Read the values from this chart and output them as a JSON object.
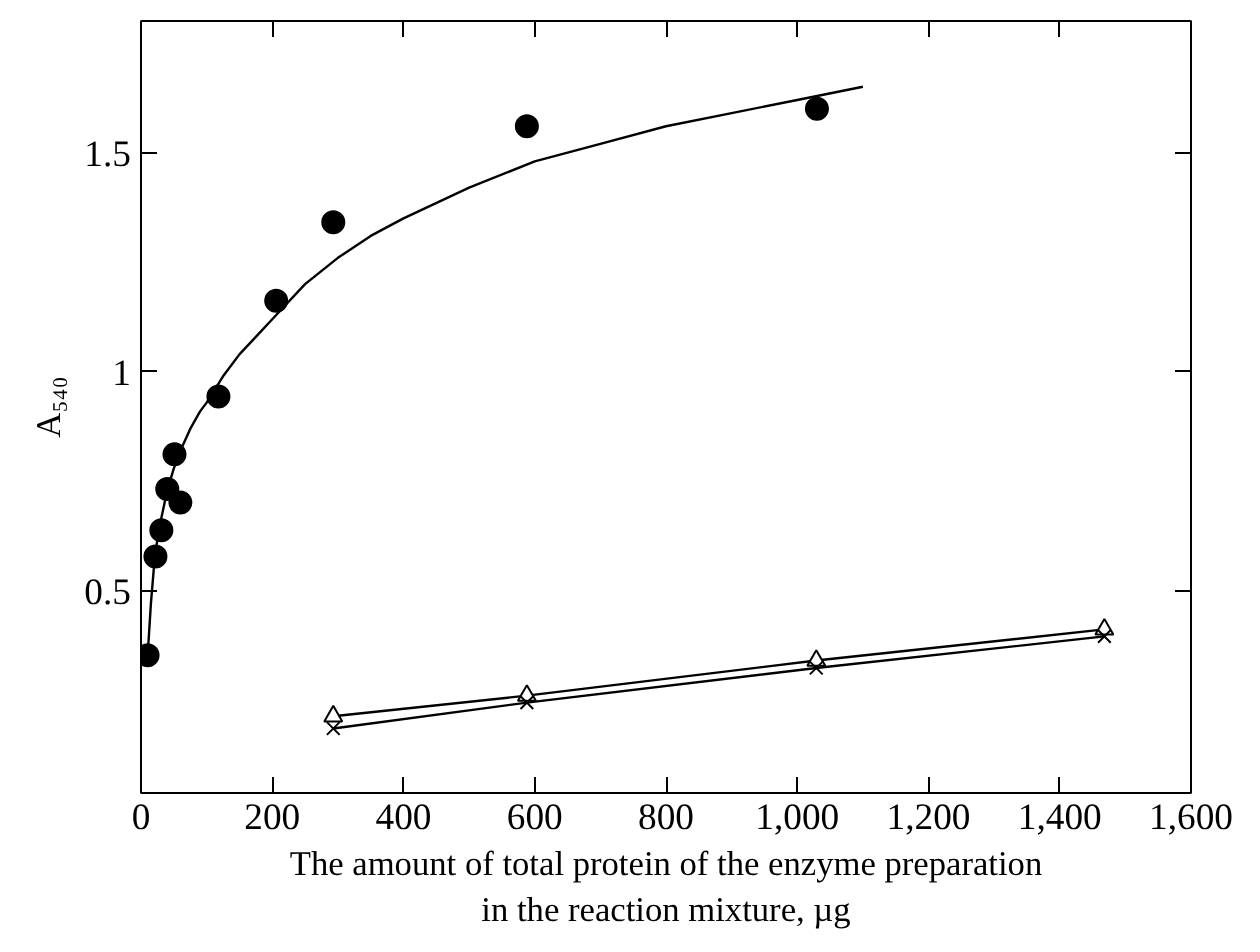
{
  "chart_data": {
    "type": "scatter",
    "xlabel": "The amount of total protein of the enzyme preparation\nin the reaction mixture, µg",
    "ylabel": "A₅₄₀",
    "xlim": [
      0,
      1600
    ],
    "xticks": [
      0,
      200,
      400,
      600,
      800,
      {
        "value": 1000,
        "label": "1,000"
      },
      {
        "value": 1200,
        "label": "1,200"
      },
      {
        "value": 1400,
        "label": "1,400"
      },
      {
        "value": 1600,
        "label": "1,600"
      }
    ],
    "ylim": [
      0.04,
      1.8
    ],
    "yticks": [
      0.5,
      1,
      1.5
    ],
    "grid": false,
    "series": [
      {
        "marker": "circle",
        "color": "#000000",
        "x": [
          10,
          22,
          31,
          40,
          51,
          60,
          118,
          206,
          293,
          588,
          1030
        ],
        "values": [
          0.354,
          0.579,
          0.639,
          0.733,
          0.812,
          0.702,
          0.944,
          1.162,
          1.341,
          1.56,
          1.6
        ]
      },
      {
        "type": "line",
        "marker": "none",
        "color": "#000000",
        "x": [
          10,
          15,
          20,
          25,
          30,
          40,
          50,
          60,
          75,
          90,
          100,
          125,
          150,
          175,
          200,
          250,
          300,
          350,
          400,
          500,
          600,
          700,
          800,
          900,
          1000,
          1100
        ],
        "values": [
          0.35,
          0.47,
          0.56,
          0.62,
          0.66,
          0.73,
          0.78,
          0.82,
          0.87,
          0.91,
          0.93,
          0.99,
          1.04,
          1.08,
          1.12,
          1.2,
          1.26,
          1.31,
          1.35,
          1.42,
          1.48,
          1.52,
          1.56,
          1.59,
          1.62,
          1.65
        ]
      },
      {
        "type": "line",
        "marker": "triangle",
        "color": "#000000",
        "x": [
          293,
          588,
          1029,
          1468
        ],
        "values": [
          0.215,
          0.262,
          0.342,
          0.413
        ]
      },
      {
        "type": "line",
        "marker": "cross",
        "color": "#000000",
        "x": [
          293,
          588,
          1029,
          1468
        ],
        "values": [
          0.187,
          0.246,
          0.325,
          0.397
        ]
      }
    ]
  }
}
